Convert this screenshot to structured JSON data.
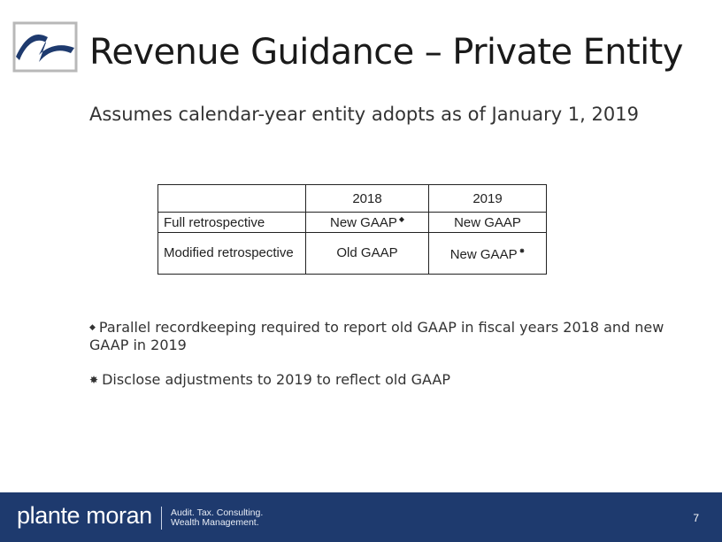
{
  "title": "Revenue Guidance – Private Entity",
  "subtitle": "Assumes calendar-year entity adopts as of January 1, 2019",
  "table": {
    "headers": [
      "",
      "2018",
      "2019"
    ],
    "rows": [
      {
        "label": "Full retrospective",
        "y2018": "New GAAP",
        "y2019": "New GAAP",
        "mark_2018": "diamond",
        "mark_2019": ""
      },
      {
        "label": "Modified retrospective",
        "y2018": "Old GAAP",
        "y2019": "New GAAP",
        "mark_2018": "",
        "mark_2019": "burst"
      }
    ]
  },
  "notes": [
    {
      "symbol": "diamond",
      "text": "Parallel recordkeeping required to report old GAAP in fiscal years 2018 and new GAAP in 2019"
    },
    {
      "symbol": "burst",
      "text": "Disclose adjustments to 2019 to reflect old GAAP"
    }
  ],
  "footer": {
    "brand": "plante moran",
    "tagline_line1": "Audit. Tax. Consulting.",
    "tagline_line2": "Wealth Management.",
    "page_number": "7"
  },
  "colors": {
    "footer_bg": "#1e3a6e",
    "logo_blue": "#1e3a6e"
  },
  "icons": {
    "logo": "plante-moran-n-logo",
    "diamond": "diamond-bullet",
    "burst": "burst-bullet"
  }
}
